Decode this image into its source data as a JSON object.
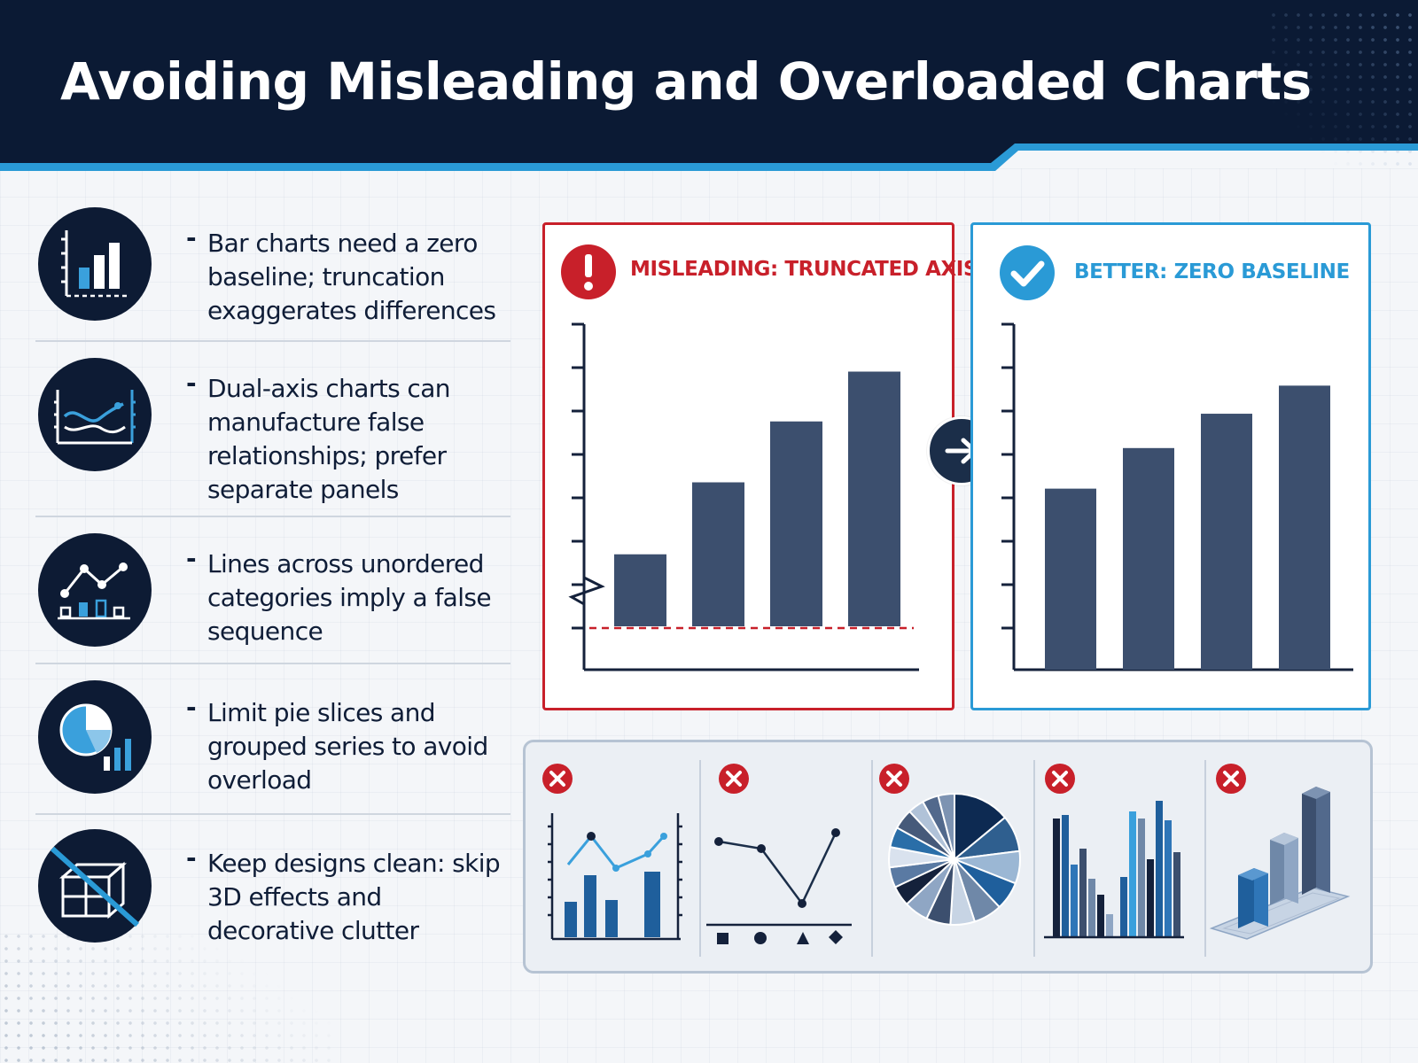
{
  "header": {
    "title": "Avoiding Misleading and Overloaded Charts"
  },
  "tips": [
    {
      "icon": "bar-chart-baseline-icon",
      "text": "Bar charts need a zero baseline; truncation exaggerates differences"
    },
    {
      "icon": "dual-axis-chart-icon",
      "text": "Dual-axis charts can manufacture false relationships; prefer separate panels"
    },
    {
      "icon": "line-over-categories-icon",
      "text": "Lines across unordered categories imply a false sequence"
    },
    {
      "icon": "pie-and-bars-icon",
      "text": "Limit pie slices and grouped series to avoid overload"
    },
    {
      "icon": "no-3d-cube-icon",
      "text": "Keep designs clean: skip 3D effects and decorative clutter"
    }
  ],
  "comparison": {
    "bad": {
      "label": "MISLEADING: TRUNCATED AXIS",
      "icon": "exclamation-icon",
      "bar_values": [
        58,
        71,
        82,
        91
      ],
      "axis_min": 45,
      "axis_max": 97
    },
    "good": {
      "label": "BETTER: ZERO BASELINE",
      "icon": "checkmark-icon",
      "bar_values": [
        58,
        71,
        82,
        91
      ],
      "axis_min": 0,
      "axis_max": 105
    },
    "arrow_icon": "arrow-right-icon"
  },
  "bad_examples": [
    {
      "icon": "x-mark-icon",
      "kind": "dual-axis-chart"
    },
    {
      "icon": "x-mark-icon",
      "kind": "line-over-categories"
    },
    {
      "icon": "x-mark-icon",
      "kind": "overloaded-pie"
    },
    {
      "icon": "x-mark-icon",
      "kind": "overloaded-grouped-bars"
    },
    {
      "icon": "x-mark-icon",
      "kind": "3d-bar-chart"
    }
  ],
  "colors": {
    "navy": "#0d1b34",
    "accent_blue": "#2a9ad6",
    "warning_red": "#c8202a",
    "bar_fill": "#3c4f6e"
  }
}
